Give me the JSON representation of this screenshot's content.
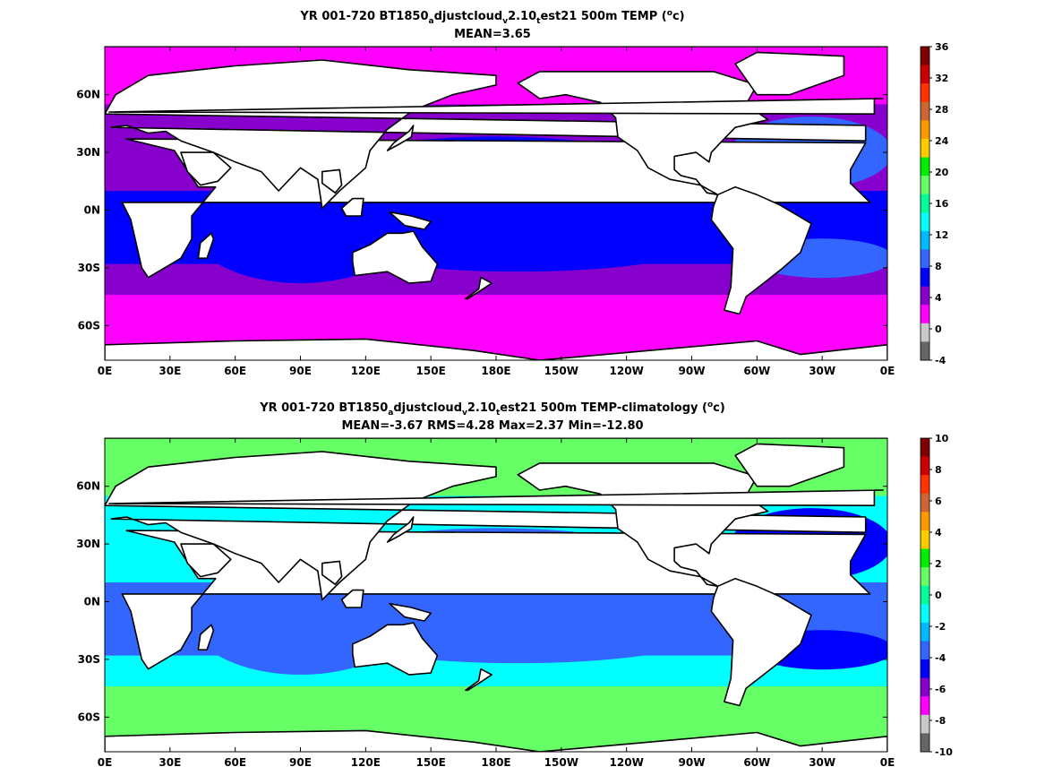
{
  "panels": [
    {
      "title_main": "YR 001-720 BT1850",
      "title_sub1": "a",
      "title_mid1": "djustcloud",
      "title_sub2": "v",
      "title_mid2": "2.10",
      "title_sub3": "t",
      "title_end": "est21 500m TEMP (",
      "title_sup": "o",
      "title_close": "c)",
      "stats": "MEAN=3.65",
      "colorbar_ticks": [
        "36",
        "32",
        "28",
        "24",
        "20",
        "16",
        "12",
        "8",
        "4",
        "0",
        "-4"
      ],
      "colorbar_colors": [
        "#7f0000",
        "#cc0000",
        "#ff3300",
        "#cc6633",
        "#ff9900",
        "#ffcc00",
        "#00ee00",
        "#66ff66",
        "#00ff99",
        "#00ffff",
        "#00bbff",
        "#3366ff",
        "#0000ff",
        "#8800cc",
        "#ff00ff",
        "#c8c8c8",
        "#666666"
      ],
      "ocean_colors": {
        "polar": "#ff00ff",
        "mid": "#8800cc",
        "tropical": "#0000ff",
        "warm": "#3366ff"
      }
    },
    {
      "title_main": "YR 001-720 BT1850",
      "title_sub1": "a",
      "title_mid1": "djustcloud",
      "title_sub2": "v",
      "title_mid2": "2.10",
      "title_sub3": "t",
      "title_end": "est21 500m TEMP-climatology (",
      "title_sup": "o",
      "title_close": "c)",
      "stats": "MEAN=-3.67   RMS=4.28   Max=2.37   Min=-12.80",
      "colorbar_ticks": [
        "10",
        "8",
        "6",
        "4",
        "2",
        "0",
        "-2",
        "-4",
        "-6",
        "-8",
        "-10"
      ],
      "colorbar_colors": [
        "#7f0000",
        "#cc0000",
        "#ff3300",
        "#cc6633",
        "#ff9900",
        "#ffcc00",
        "#00ee00",
        "#66ff66",
        "#00ff99",
        "#00ffff",
        "#00bbff",
        "#3366ff",
        "#0000ff",
        "#8800cc",
        "#ff00ff",
        "#c8c8c8",
        "#666666"
      ],
      "ocean_colors": {
        "polar": "#66ff66",
        "mid": "#00ffff",
        "tropical": "#3366ff",
        "warm": "#0000ff"
      }
    }
  ],
  "x_ticks": [
    "0E",
    "30E",
    "60E",
    "90E",
    "120E",
    "150E",
    "180E",
    "150W",
    "120W",
    "90W",
    "60W",
    "30W",
    "0E"
  ],
  "y_ticks": [
    "60N",
    "30N",
    "0N",
    "30S",
    "60S"
  ]
}
